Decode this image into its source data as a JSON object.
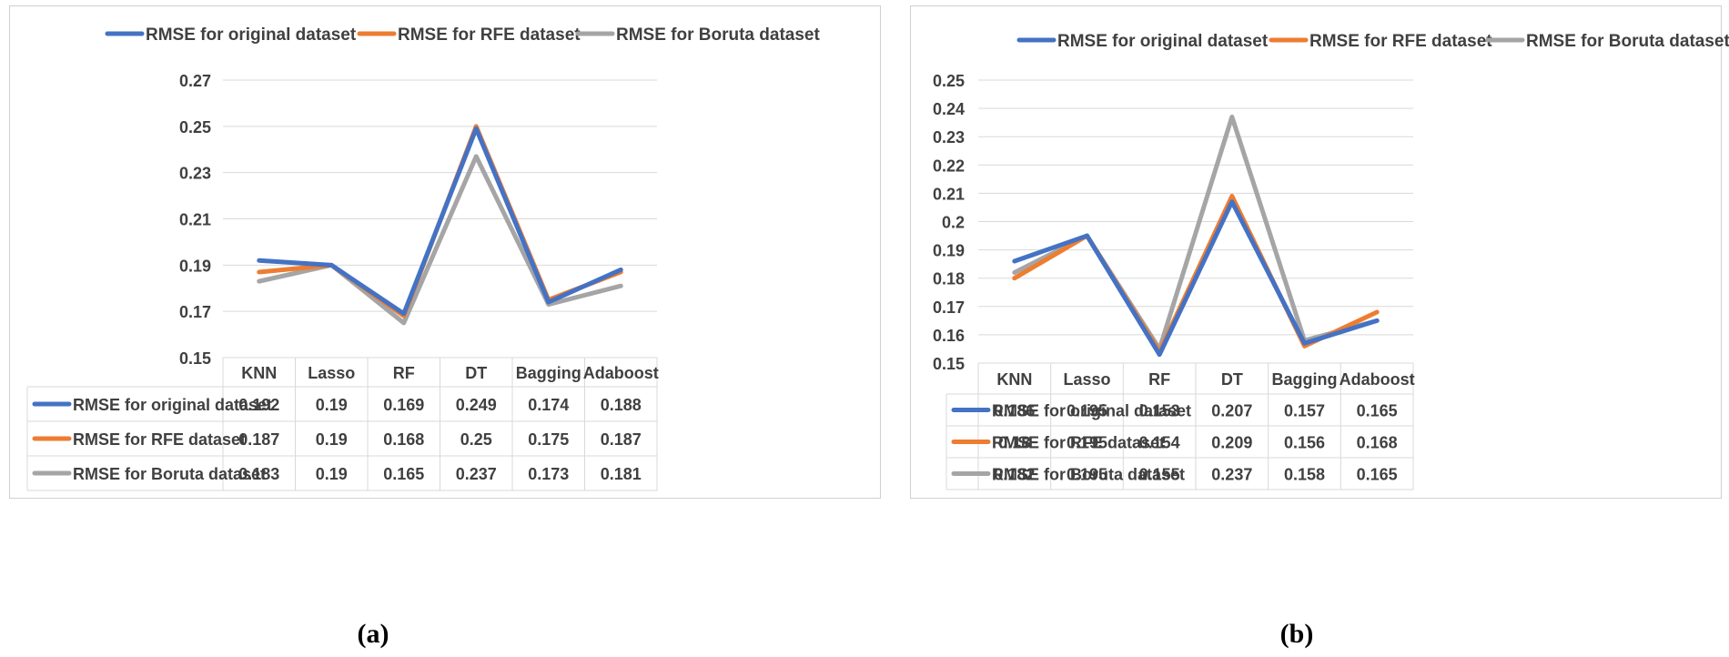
{
  "colors": {
    "original": "#4472C4",
    "rfe": "#ED7D31",
    "boruta": "#A5A5A5",
    "grid": "#d9d9d9",
    "text": "#404040"
  },
  "panels": [
    {
      "caption": "(a)",
      "legend": [
        "RMSE for original dataset",
        "RMSE for RFE dataset",
        "RMSE for Boruta dataset"
      ]
    },
    {
      "caption": "(b)",
      "legend": [
        "RMSE for original dataset",
        "RMSE for RFE dataset",
        "RMSE for Boruta dataset"
      ]
    }
  ],
  "chart_data": [
    {
      "type": "line",
      "title": "",
      "xlabel": "",
      "ylabel": "",
      "categories": [
        "KNN",
        "Lasso",
        "RF",
        "DT",
        "Bagging",
        "Adaboost"
      ],
      "ylim": [
        0.15,
        0.27
      ],
      "yticks": [
        "0.27",
        "0.25",
        "0.23",
        "0.21",
        "0.19",
        "0.17",
        "0.15"
      ],
      "grid": true,
      "legend_position": "top",
      "data_table": true,
      "series": [
        {
          "name": "RMSE for original dataset",
          "values": [
            0.192,
            0.19,
            0.169,
            0.249,
            0.174,
            0.188
          ],
          "labels": [
            "0.192",
            "0.19",
            "0.169",
            "0.249",
            "0.174",
            "0.188"
          ]
        },
        {
          "name": "RMSE for RFE dataset",
          "values": [
            0.187,
            0.19,
            0.168,
            0.25,
            0.175,
            0.187
          ],
          "labels": [
            "0.187",
            "0.19",
            "0.168",
            "0.25",
            "0.175",
            "0.187"
          ]
        },
        {
          "name": "RMSE for Boruta dataset",
          "values": [
            0.183,
            0.19,
            0.165,
            0.237,
            0.173,
            0.181
          ],
          "labels": [
            "0.183",
            "0.19",
            "0.165",
            "0.237",
            "0.173",
            "0.181"
          ]
        }
      ]
    },
    {
      "type": "line",
      "title": "",
      "xlabel": "",
      "ylabel": "",
      "categories": [
        "KNN",
        "Lasso",
        "RF",
        "DT",
        "Bagging",
        "Adaboost"
      ],
      "ylim": [
        0.15,
        0.25
      ],
      "yticks": [
        "0.25",
        "0.24",
        "0.23",
        "0.22",
        "0.21",
        "0.2",
        "0.19",
        "0.18",
        "0.17",
        "0.16",
        "0.15"
      ],
      "grid": true,
      "legend_position": "top",
      "data_table": true,
      "series": [
        {
          "name": "RMSE for original dataset",
          "values": [
            0.186,
            0.195,
            0.153,
            0.207,
            0.157,
            0.165
          ],
          "labels": [
            "0.186",
            "0.195",
            "0.153",
            "0.207",
            "0.157",
            "0.165"
          ]
        },
        {
          "name": "RMSE for RFE dataset",
          "values": [
            0.18,
            0.195,
            0.154,
            0.209,
            0.156,
            0.168
          ],
          "labels": [
            "0.18",
            "0.195",
            "0.154",
            "0.209",
            "0.156",
            "0.168"
          ]
        },
        {
          "name": "RMSE for Boruta dataset",
          "values": [
            0.182,
            0.195,
            0.155,
            0.237,
            0.158,
            0.165
          ],
          "labels": [
            "0.182",
            "0.195",
            "0.155",
            "0.237",
            "0.158",
            "0.165"
          ]
        }
      ]
    }
  ]
}
